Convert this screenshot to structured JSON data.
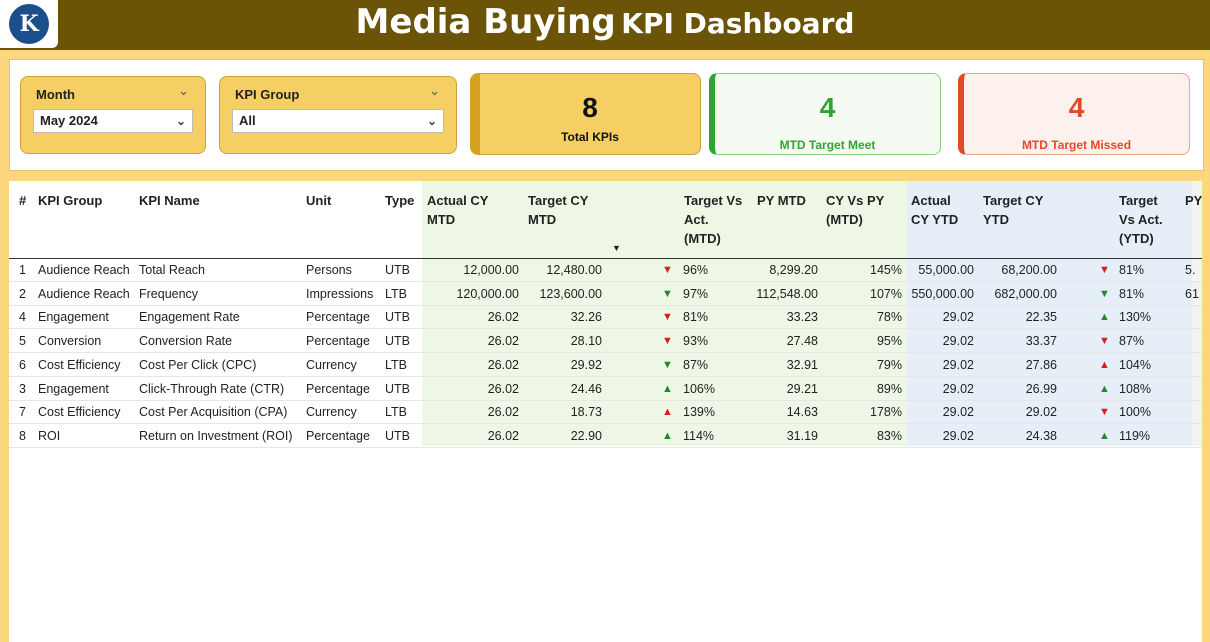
{
  "header": {
    "title_part1": "Media Buying",
    "title_part2": "KPI Dashboard",
    "logo_text": "K"
  },
  "more_dots": "...",
  "slicers": {
    "month": {
      "label": "Month",
      "value": "May 2024"
    },
    "kpi_group": {
      "label": "KPI Group",
      "value": "All"
    }
  },
  "cards": {
    "total": {
      "value": "8",
      "label": "Total KPIs",
      "accent": "#d4a322"
    },
    "meet": {
      "value": "4",
      "label": "MTD Target Meet",
      "accent": "#2fa52f"
    },
    "missed": {
      "value": "4",
      "label": "MTD Target Missed",
      "accent": "#e04a24"
    }
  },
  "table": {
    "headers": {
      "num": "#",
      "group": "KPI Group",
      "name": "KPI Name",
      "unit": "Unit",
      "type": "Type",
      "actual_mtd": [
        "Actual CY",
        "MTD"
      ],
      "target_mtd": [
        "Target CY",
        "MTD"
      ],
      "tva_mtd": [
        "Target Vs",
        "Act.",
        "(MTD)"
      ],
      "py_mtd": "PY MTD",
      "cyvspy_mtd": [
        "CY Vs PY",
        "(MTD)"
      ],
      "actual_ytd": [
        "Actual",
        "CY YTD"
      ],
      "target_ytd": [
        "Target CY",
        "YTD"
      ],
      "tva_ytd": [
        "Target",
        "Vs Act.",
        "(YTD)"
      ],
      "py_cut": "PY"
    },
    "rows": [
      {
        "num": "1",
        "group": "Audience Reach",
        "name": "Total Reach",
        "unit": "Persons",
        "type": "UTB",
        "actual_mtd": "12,000.00",
        "target_mtd": "12,480.00",
        "arrow_mtd": "▼",
        "dir_mtd": "down",
        "tva_mtd": "96%",
        "py_mtd": "8,299.20",
        "cyvspy": "145%",
        "actual_ytd": "55,000.00",
        "target_ytd": "68,200.00",
        "arrow_ytd": "▼",
        "dir_ytd": "down",
        "tva_ytd": "81%",
        "py_cut": "5."
      },
      {
        "num": "2",
        "group": "Audience Reach",
        "name": "Frequency",
        "unit": "Impressions",
        "type": "LTB",
        "actual_mtd": "120,000.00",
        "target_mtd": "123,600.00",
        "arrow_mtd": "▼",
        "dir_mtd": "up",
        "tva_mtd": "97%",
        "py_mtd": "112,548.00",
        "cyvspy": "107%",
        "actual_ytd": "550,000.00",
        "target_ytd": "682,000.00",
        "arrow_ytd": "▼",
        "dir_ytd": "up",
        "tva_ytd": "81%",
        "py_cut": "61"
      },
      {
        "num": "4",
        "group": "Engagement",
        "name": "Engagement Rate",
        "unit": "Percentage",
        "type": "UTB",
        "actual_mtd": "26.02",
        "target_mtd": "32.26",
        "arrow_mtd": "▼",
        "dir_mtd": "down",
        "tva_mtd": "81%",
        "py_mtd": "33.23",
        "cyvspy": "78%",
        "actual_ytd": "29.02",
        "target_ytd": "22.35",
        "arrow_ytd": "▲",
        "dir_ytd": "up",
        "tva_ytd": "130%",
        "py_cut": ""
      },
      {
        "num": "5",
        "group": "Conversion",
        "name": "Conversion Rate",
        "unit": "Percentage",
        "type": "UTB",
        "actual_mtd": "26.02",
        "target_mtd": "28.10",
        "arrow_mtd": "▼",
        "dir_mtd": "down",
        "tva_mtd": "93%",
        "py_mtd": "27.48",
        "cyvspy": "95%",
        "actual_ytd": "29.02",
        "target_ytd": "33.37",
        "arrow_ytd": "▼",
        "dir_ytd": "down",
        "tva_ytd": "87%",
        "py_cut": ""
      },
      {
        "num": "6",
        "group": "Cost Efficiency",
        "name": "Cost Per Click (CPC)",
        "unit": "Currency",
        "type": "LTB",
        "actual_mtd": "26.02",
        "target_mtd": "29.92",
        "arrow_mtd": "▼",
        "dir_mtd": "up",
        "tva_mtd": "87%",
        "py_mtd": "32.91",
        "cyvspy": "79%",
        "actual_ytd": "29.02",
        "target_ytd": "27.86",
        "arrow_ytd": "▲",
        "dir_ytd": "down",
        "tva_ytd": "104%",
        "py_cut": ""
      },
      {
        "num": "3",
        "group": "Engagement",
        "name": "Click-Through Rate (CTR)",
        "unit": "Percentage",
        "type": "UTB",
        "actual_mtd": "26.02",
        "target_mtd": "24.46",
        "arrow_mtd": "▲",
        "dir_mtd": "up",
        "tva_mtd": "106%",
        "py_mtd": "29.21",
        "cyvspy": "89%",
        "actual_ytd": "29.02",
        "target_ytd": "26.99",
        "arrow_ytd": "▲",
        "dir_ytd": "up",
        "tva_ytd": "108%",
        "py_cut": ""
      },
      {
        "num": "7",
        "group": "Cost Efficiency",
        "name": "Cost Per Acquisition (CPA)",
        "unit": "Currency",
        "type": "LTB",
        "actual_mtd": "26.02",
        "target_mtd": "18.73",
        "arrow_mtd": "▲",
        "dir_mtd": "down",
        "tva_mtd": "139%",
        "py_mtd": "14.63",
        "cyvspy": "178%",
        "actual_ytd": "29.02",
        "target_ytd": "29.02",
        "arrow_ytd": "▼",
        "dir_ytd": "down",
        "tva_ytd": "100%",
        "py_cut": ""
      },
      {
        "num": "8",
        "group": "ROI",
        "name": "Return on Investment (ROI)",
        "unit": "Percentage",
        "type": "UTB",
        "actual_mtd": "26.02",
        "target_mtd": "22.90",
        "arrow_mtd": "▲",
        "dir_mtd": "up",
        "tva_mtd": "114%",
        "py_mtd": "31.19",
        "cyvspy": "83%",
        "actual_ytd": "29.02",
        "target_ytd": "24.38",
        "arrow_ytd": "▲",
        "dir_ytd": "up",
        "tva_ytd": "119%",
        "py_cut": ""
      }
    ]
  },
  "colors": {
    "up": "#1e8a2e",
    "down": "#d21f1f",
    "header_bg": "#6b5407",
    "page_bg": "#fcd77e"
  }
}
